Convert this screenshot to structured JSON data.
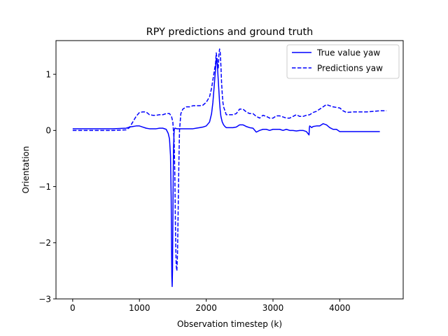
{
  "chart_data": {
    "type": "line",
    "title": "RPY predictions and ground truth",
    "xlabel": "Observation timestep (k)",
    "ylabel": "Orientation",
    "xlim": [
      -250,
      4950
    ],
    "ylim": [
      -3.0,
      1.6
    ],
    "xticks": [
      0,
      1000,
      2000,
      3000,
      4000
    ],
    "yticks": [
      -3,
      -2,
      -1,
      0,
      1
    ],
    "grid": false,
    "legend_position": "top-right",
    "series": [
      {
        "name": "True value yaw",
        "color": "#0000ff",
        "dash": "solid",
        "x": [
          0,
          200,
          400,
          600,
          800,
          850,
          900,
          950,
          1000,
          1050,
          1100,
          1150,
          1200,
          1250,
          1300,
          1350,
          1400,
          1430,
          1450,
          1465,
          1475,
          1480,
          1485,
          1490,
          1495,
          1500,
          1505,
          1510,
          1520,
          1530,
          1540,
          1560,
          1580,
          1600,
          1650,
          1700,
          1750,
          1800,
          1850,
          1900,
          1950,
          2000,
          2050,
          2080,
          2100,
          2120,
          2140,
          2150,
          2160,
          2170,
          2180,
          2190,
          2200,
          2210,
          2220,
          2240,
          2260,
          2280,
          2300,
          2350,
          2400,
          2450,
          2500,
          2550,
          2600,
          2650,
          2700,
          2750,
          2800,
          2850,
          2900,
          2950,
          3000,
          3050,
          3100,
          3150,
          3200,
          3250,
          3300,
          3350,
          3400,
          3450,
          3500,
          3520,
          3540,
          3545,
          3550,
          3560,
          3580,
          3600,
          3650,
          3700,
          3750,
          3800,
          3850,
          3900,
          3950,
          4000,
          4050,
          4100,
          4200,
          4300,
          4400,
          4500,
          4600
        ],
        "y": [
          0.03,
          0.03,
          0.03,
          0.03,
          0.04,
          0.06,
          0.07,
          0.08,
          0.08,
          0.06,
          0.04,
          0.03,
          0.03,
          0.03,
          0.04,
          0.04,
          0.02,
          -0.05,
          -0.15,
          -0.45,
          -1.2,
          -2.0,
          -2.6,
          -2.78,
          -2.5,
          -1.7,
          -0.9,
          -0.3,
          0.0,
          0.04,
          0.04,
          0.03,
          0.03,
          0.03,
          0.03,
          0.03,
          0.03,
          0.03,
          0.04,
          0.05,
          0.06,
          0.08,
          0.15,
          0.3,
          0.5,
          0.8,
          1.1,
          1.28,
          1.25,
          1.1,
          0.9,
          0.7,
          0.5,
          0.35,
          0.25,
          0.15,
          0.1,
          0.07,
          0.05,
          0.05,
          0.05,
          0.06,
          0.1,
          0.1,
          0.07,
          0.05,
          0.04,
          -0.03,
          0.0,
          0.02,
          0.02,
          0.0,
          0.02,
          0.02,
          0.02,
          0.0,
          0.02,
          0.0,
          0.0,
          -0.01,
          0.0,
          0.0,
          -0.02,
          -0.05,
          -0.08,
          0.05,
          0.08,
          0.07,
          0.05,
          0.07,
          0.08,
          0.08,
          0.12,
          0.1,
          0.05,
          0.02,
          0.02,
          -0.02,
          -0.02,
          -0.02,
          -0.02,
          -0.02,
          -0.02,
          -0.02,
          -0.02
        ]
      },
      {
        "name": "Predictions yaw",
        "color": "#0000ff",
        "dash": "dashed",
        "x": [
          0,
          200,
          400,
          600,
          800,
          850,
          900,
          950,
          1000,
          1050,
          1100,
          1150,
          1200,
          1250,
          1300,
          1350,
          1400,
          1450,
          1480,
          1500,
          1520,
          1530,
          1540,
          1550,
          1560,
          1570,
          1580,
          1590,
          1600,
          1620,
          1650,
          1700,
          1750,
          1800,
          1850,
          1900,
          1950,
          2000,
          2050,
          2080,
          2100,
          2120,
          2140,
          2150,
          2160,
          2170,
          2180,
          2190,
          2200,
          2210,
          2220,
          2230,
          2240,
          2250,
          2260,
          2280,
          2300,
          2350,
          2400,
          2450,
          2500,
          2550,
          2600,
          2650,
          2700,
          2750,
          2800,
          2850,
          2900,
          2950,
          3000,
          3050,
          3100,
          3150,
          3200,
          3250,
          3300,
          3350,
          3400,
          3450,
          3500,
          3550,
          3600,
          3650,
          3700,
          3750,
          3800,
          3850,
          3900,
          3950,
          4000,
          4050,
          4100,
          4200,
          4300,
          4400,
          4500,
          4600,
          4700
        ],
        "y": [
          0.0,
          0.0,
          0.0,
          0.0,
          0.01,
          0.05,
          0.15,
          0.25,
          0.32,
          0.33,
          0.33,
          0.28,
          0.27,
          0.27,
          0.28,
          0.28,
          0.3,
          0.3,
          0.25,
          0.15,
          -0.2,
          -0.8,
          -1.8,
          -2.4,
          -2.5,
          -2.2,
          -1.4,
          -0.6,
          0.0,
          0.3,
          0.38,
          0.42,
          0.42,
          0.44,
          0.44,
          0.44,
          0.45,
          0.5,
          0.6,
          0.75,
          0.9,
          1.05,
          1.2,
          1.38,
          1.3,
          1.2,
          1.1,
          1.35,
          1.45,
          1.38,
          1.15,
          0.85,
          0.65,
          0.5,
          0.42,
          0.35,
          0.28,
          0.28,
          0.28,
          0.3,
          0.38,
          0.38,
          0.33,
          0.3,
          0.3,
          0.25,
          0.22,
          0.27,
          0.25,
          0.22,
          0.22,
          0.26,
          0.26,
          0.24,
          0.22,
          0.22,
          0.25,
          0.28,
          0.25,
          0.25,
          0.27,
          0.28,
          0.32,
          0.34,
          0.38,
          0.42,
          0.46,
          0.44,
          0.42,
          0.41,
          0.4,
          0.35,
          0.32,
          0.33,
          0.33,
          0.33,
          0.34,
          0.35,
          0.35
        ]
      }
    ]
  }
}
